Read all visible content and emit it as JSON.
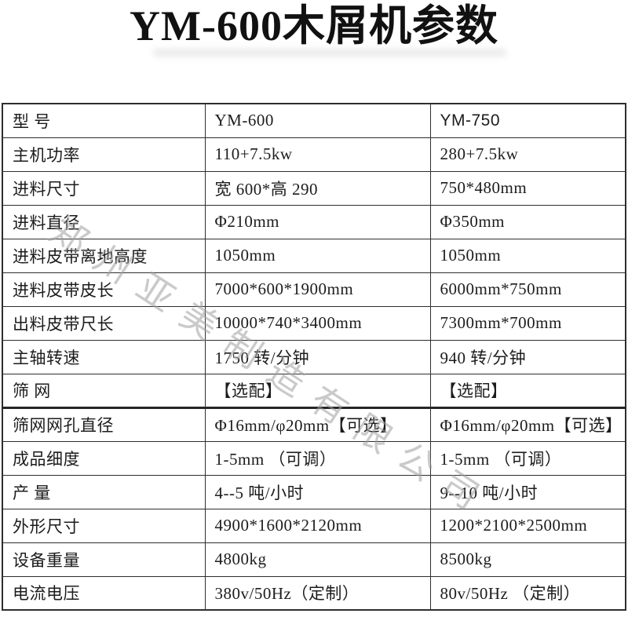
{
  "page": {
    "title": "YM-600木屑机参数",
    "watermark": "郑州亚美制造有限公司"
  },
  "table": {
    "column_keys": [
      "label",
      "ym600",
      "ym750"
    ],
    "rows": [
      {
        "label": "型 号",
        "ym600": "YM-600",
        "ym750": "YM-750"
      },
      {
        "label": "主机功率",
        "ym600": "110+7.5kw",
        "ym750": "280+7.5kw"
      },
      {
        "label": "进料尺寸",
        "ym600": "宽 600*高 290",
        "ym750": "750*480mm"
      },
      {
        "label": "进料直径",
        "ym600": "Φ210mm",
        "ym750": "Φ350mm"
      },
      {
        "label": "进料皮带离地高度",
        "ym600": "1050mm",
        "ym750": "1050mm"
      },
      {
        "label": "进料皮带皮长",
        "ym600": "7000*600*1900mm",
        "ym750": "6000mm*750mm"
      },
      {
        "label": "出料皮带尺长",
        "ym600": "10000*740*3400mm",
        "ym750": "7300mm*700mm"
      },
      {
        "label": "主轴转速",
        "ym600": "1750 转/分钟",
        "ym750": "940 转/分钟"
      },
      {
        "label": "筛 网",
        "ym600": "【选配】",
        "ym750": "【选配】"
      },
      {
        "label": "筛网网孔直径",
        "ym600": "Φ16mm/φ20mm【可选】",
        "ym750": "Φ16mm/φ20mm【可选】"
      },
      {
        "label": "成品细度",
        "ym600": "1-5mm （可调）",
        "ym750": "1-5mm （可调）"
      },
      {
        "label": "产 量",
        "ym600": "4--5 吨/小时",
        "ym750": "9--10 吨/小时"
      },
      {
        "label": "外形尺寸",
        "ym600": "4900*1600*2120mm",
        "ym750": "1200*2100*2500mm"
      },
      {
        "label": "设备重量",
        "ym600": "4800kg",
        "ym750": "8500kg"
      },
      {
        "label": "电流电压",
        "ym600": "380v/50Hz（定制）",
        "ym750": "80v/50Hz （定制）"
      }
    ],
    "thick_border_after_row_index": 8,
    "sans_cell": {
      "row": 0,
      "col": 2
    }
  },
  "colors": {
    "text": "#1c1c1c",
    "border": "#2e2e2e",
    "watermark": "#9e9e9e",
    "background": "#ffffff"
  }
}
